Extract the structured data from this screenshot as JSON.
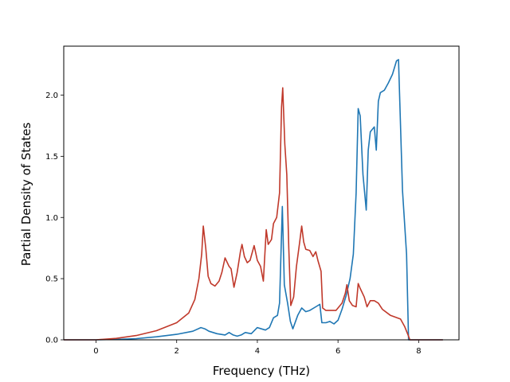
{
  "chart_data": {
    "type": "line",
    "title": "",
    "xlabel": "Frequency (THz)",
    "ylabel": "Partial Density of States",
    "xlim": [
      -0.8,
      9.0
    ],
    "ylim": [
      0,
      2.4
    ],
    "xticks": [
      0,
      2,
      4,
      6,
      8
    ],
    "xtick_labels": [
      "0",
      "2",
      "4",
      "6",
      "8"
    ],
    "yticks": [
      0,
      0.5,
      1.0,
      1.5,
      2.0
    ],
    "ytick_labels": [
      "0.0",
      "0.5",
      "1.0",
      "1.5",
      "2.0"
    ],
    "grid": false,
    "legend": "none",
    "series": [
      {
        "color": "#1f77b4",
        "points": [
          [
            -0.8,
            0
          ],
          [
            0,
            0
          ],
          [
            0.5,
            0.003
          ],
          [
            1.0,
            0.01
          ],
          [
            1.5,
            0.025
          ],
          [
            2.0,
            0.045
          ],
          [
            2.4,
            0.07
          ],
          [
            2.6,
            0.1
          ],
          [
            2.7,
            0.09
          ],
          [
            2.8,
            0.07
          ],
          [
            3.0,
            0.05
          ],
          [
            3.2,
            0.04
          ],
          [
            3.3,
            0.06
          ],
          [
            3.4,
            0.04
          ],
          [
            3.5,
            0.03
          ],
          [
            3.6,
            0.04
          ],
          [
            3.7,
            0.06
          ],
          [
            3.85,
            0.05
          ],
          [
            4.0,
            0.1
          ],
          [
            4.1,
            0.09
          ],
          [
            4.2,
            0.08
          ],
          [
            4.3,
            0.1
          ],
          [
            4.4,
            0.18
          ],
          [
            4.5,
            0.2
          ],
          [
            4.55,
            0.3
          ],
          [
            4.62,
            1.09
          ],
          [
            4.67,
            0.45
          ],
          [
            4.75,
            0.3
          ],
          [
            4.82,
            0.15
          ],
          [
            4.88,
            0.09
          ],
          [
            5.0,
            0.2
          ],
          [
            5.1,
            0.26
          ],
          [
            5.2,
            0.23
          ],
          [
            5.3,
            0.24
          ],
          [
            5.45,
            0.27
          ],
          [
            5.55,
            0.29
          ],
          [
            5.6,
            0.14
          ],
          [
            5.7,
            0.14
          ],
          [
            5.8,
            0.15
          ],
          [
            5.9,
            0.13
          ],
          [
            6.0,
            0.16
          ],
          [
            6.1,
            0.25
          ],
          [
            6.2,
            0.36
          ],
          [
            6.3,
            0.5
          ],
          [
            6.38,
            0.7
          ],
          [
            6.45,
            1.2
          ],
          [
            6.5,
            1.89
          ],
          [
            6.55,
            1.83
          ],
          [
            6.62,
            1.35
          ],
          [
            6.7,
            1.06
          ],
          [
            6.75,
            1.55
          ],
          [
            6.8,
            1.7
          ],
          [
            6.9,
            1.74
          ],
          [
            6.95,
            1.55
          ],
          [
            7.0,
            1.95
          ],
          [
            7.05,
            2.02
          ],
          [
            7.15,
            2.04
          ],
          [
            7.25,
            2.1
          ],
          [
            7.35,
            2.17
          ],
          [
            7.45,
            2.28
          ],
          [
            7.5,
            2.29
          ],
          [
            7.6,
            1.22
          ],
          [
            7.7,
            0.7
          ],
          [
            7.75,
            0.0
          ],
          [
            8.6,
            0.0
          ]
        ]
      },
      {
        "color": "#c0392b",
        "points": [
          [
            -0.8,
            0
          ],
          [
            0,
            0
          ],
          [
            0.5,
            0.012
          ],
          [
            1.0,
            0.035
          ],
          [
            1.5,
            0.075
          ],
          [
            2.0,
            0.14
          ],
          [
            2.3,
            0.22
          ],
          [
            2.45,
            0.33
          ],
          [
            2.55,
            0.5
          ],
          [
            2.62,
            0.7
          ],
          [
            2.66,
            0.93
          ],
          [
            2.72,
            0.75
          ],
          [
            2.78,
            0.52
          ],
          [
            2.85,
            0.46
          ],
          [
            2.95,
            0.44
          ],
          [
            3.05,
            0.48
          ],
          [
            3.12,
            0.55
          ],
          [
            3.2,
            0.67
          ],
          [
            3.3,
            0.6
          ],
          [
            3.35,
            0.58
          ],
          [
            3.42,
            0.43
          ],
          [
            3.5,
            0.55
          ],
          [
            3.58,
            0.72
          ],
          [
            3.62,
            0.78
          ],
          [
            3.68,
            0.68
          ],
          [
            3.75,
            0.63
          ],
          [
            3.82,
            0.65
          ],
          [
            3.92,
            0.77
          ],
          [
            4.0,
            0.65
          ],
          [
            4.08,
            0.6
          ],
          [
            4.15,
            0.48
          ],
          [
            4.22,
            0.9
          ],
          [
            4.27,
            0.78
          ],
          [
            4.35,
            0.82
          ],
          [
            4.4,
            0.95
          ],
          [
            4.48,
            1.0
          ],
          [
            4.55,
            1.2
          ],
          [
            4.6,
            1.9
          ],
          [
            4.63,
            2.06
          ],
          [
            4.68,
            1.6
          ],
          [
            4.73,
            1.35
          ],
          [
            4.78,
            0.75
          ],
          [
            4.83,
            0.28
          ],
          [
            4.9,
            0.35
          ],
          [
            4.97,
            0.6
          ],
          [
            5.05,
            0.8
          ],
          [
            5.1,
            0.93
          ],
          [
            5.15,
            0.8
          ],
          [
            5.2,
            0.74
          ],
          [
            5.3,
            0.73
          ],
          [
            5.38,
            0.68
          ],
          [
            5.45,
            0.72
          ],
          [
            5.5,
            0.65
          ],
          [
            5.58,
            0.56
          ],
          [
            5.62,
            0.26
          ],
          [
            5.7,
            0.24
          ],
          [
            5.95,
            0.24
          ],
          [
            6.1,
            0.3
          ],
          [
            6.18,
            0.38
          ],
          [
            6.22,
            0.45
          ],
          [
            6.28,
            0.32
          ],
          [
            6.36,
            0.28
          ],
          [
            6.45,
            0.27
          ],
          [
            6.5,
            0.46
          ],
          [
            6.55,
            0.42
          ],
          [
            6.65,
            0.35
          ],
          [
            6.72,
            0.27
          ],
          [
            6.8,
            0.32
          ],
          [
            6.9,
            0.32
          ],
          [
            7.0,
            0.3
          ],
          [
            7.1,
            0.25
          ],
          [
            7.3,
            0.2
          ],
          [
            7.55,
            0.17
          ],
          [
            7.65,
            0.11
          ],
          [
            7.75,
            0.03
          ],
          [
            7.78,
            0.0
          ],
          [
            8.6,
            0.0
          ]
        ]
      }
    ]
  }
}
